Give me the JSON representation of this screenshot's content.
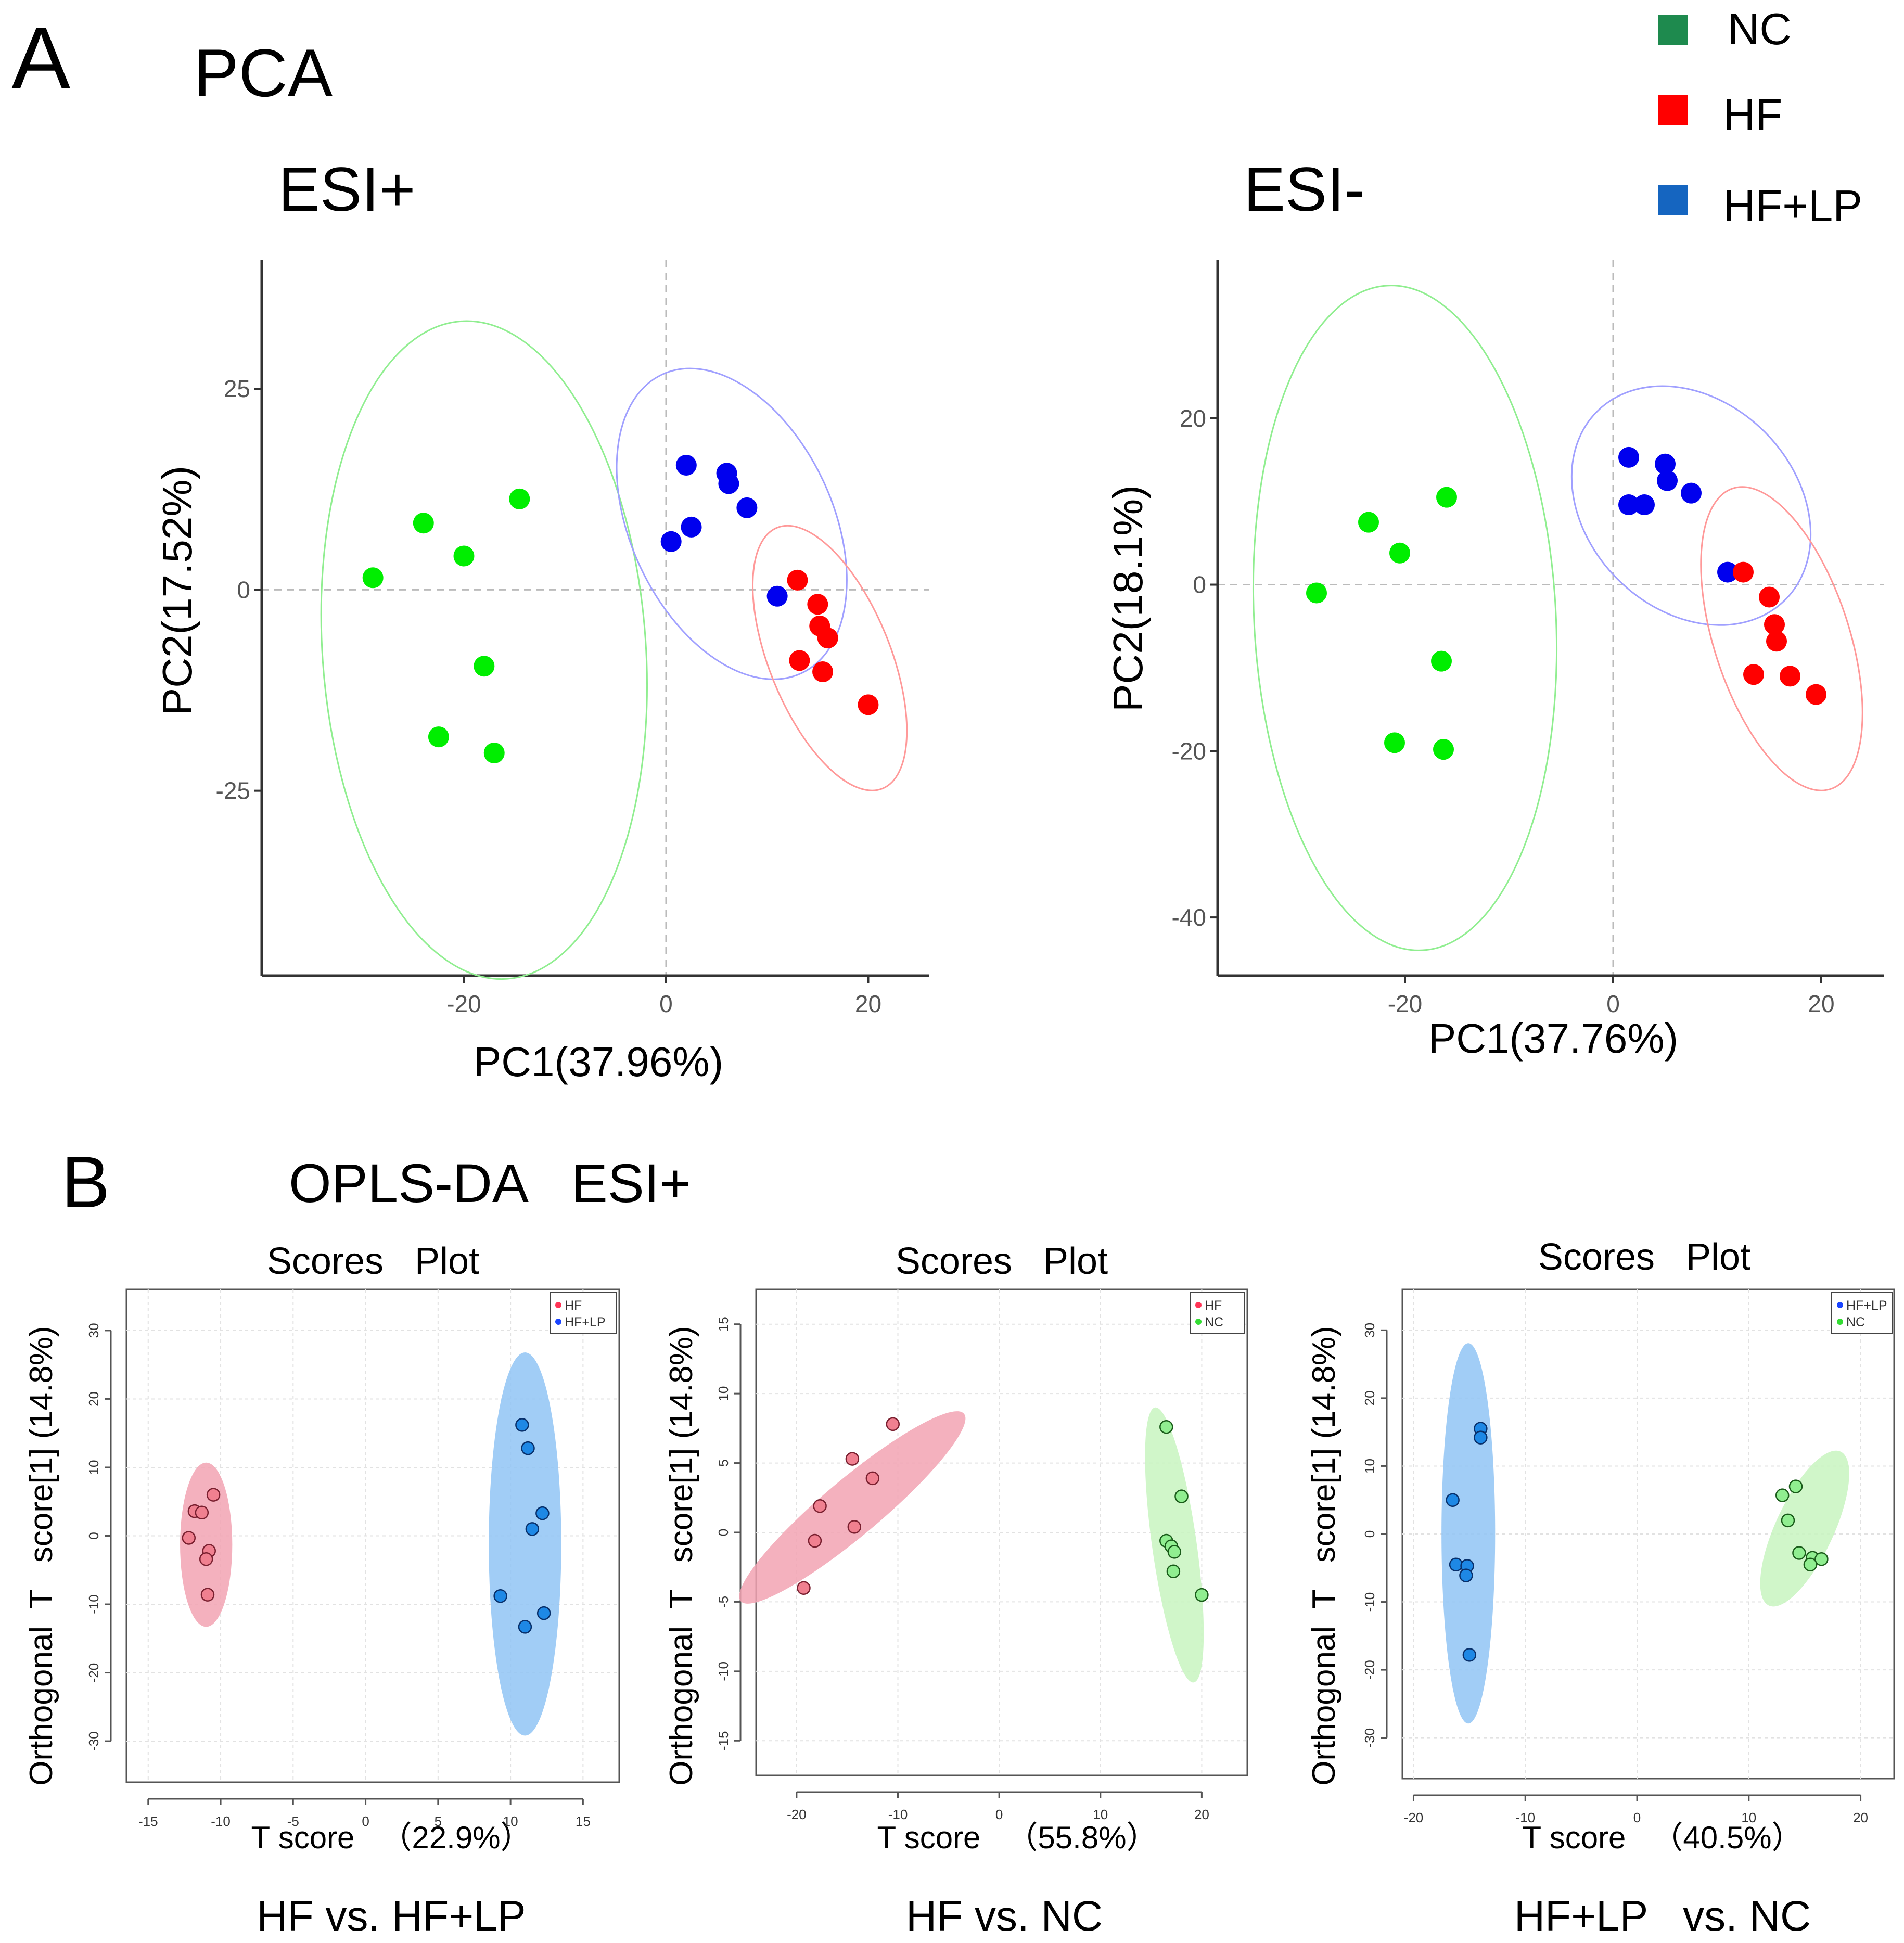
{
  "figure": {
    "panel_a": {
      "letter": "A",
      "title": "PCA"
    },
    "panel_b": {
      "letter": "B",
      "title": "OPLS-DA   ESI+"
    },
    "legend": {
      "items": [
        {
          "label": "NC",
          "color": "#1e8a4e"
        },
        {
          "label": "HF",
          "color": "#ff0000"
        },
        {
          "label": "HF+LP",
          "color": "#1565c0"
        }
      ]
    }
  },
  "chart_data": [
    {
      "id": "pca_esi_pos",
      "type": "scatter",
      "title": "ESI+",
      "xlabel": "PC1(37.96%)",
      "ylabel": "PC2(17.52%)",
      "xlim": [
        -40,
        26
      ],
      "ylim": [
        -48,
        41
      ],
      "xticks": [
        -20,
        0,
        20
      ],
      "yticks": [
        -25,
        0,
        25
      ],
      "series": [
        {
          "name": "NC",
          "color": "#00ee00",
          "points": [
            [
              -29,
              1.5
            ],
            [
              -24,
              8.3
            ],
            [
              -20,
              4.2
            ],
            [
              -14.5,
              11.3
            ],
            [
              -18,
              -9.5
            ],
            [
              -22.5,
              -18.3
            ],
            [
              -17,
              -20.3
            ]
          ],
          "ellipse": {
            "cx": -18,
            "cy": -7.5,
            "rx": 16,
            "ry": 41,
            "angle": -4
          }
        },
        {
          "name": "HF+LP",
          "color": "#0000ee",
          "points": [
            [
              0.5,
              6
            ],
            [
              2,
              15.5
            ],
            [
              2.5,
              7.8
            ],
            [
              6,
              14.5
            ],
            [
              6.2,
              13.2
            ],
            [
              8,
              10.2
            ],
            [
              11,
              -0.8
            ]
          ],
          "ellipse": {
            "cx": 6.5,
            "cy": 8.2,
            "rx": 10,
            "ry": 20.5,
            "angle": -25
          }
        },
        {
          "name": "HF",
          "color": "#ff0000",
          "points": [
            [
              13,
              1.2
            ],
            [
              15,
              -1.8
            ],
            [
              15.2,
              -4.5
            ],
            [
              16,
              -6
            ],
            [
              13.2,
              -8.8
            ],
            [
              15.5,
              -10.2
            ],
            [
              20,
              -14.3
            ]
          ],
          "ellipse": {
            "cx": 16.2,
            "cy": -8.5,
            "rx": 6,
            "ry": 17.5,
            "angle": -22
          }
        }
      ]
    },
    {
      "id": "pca_esi_neg",
      "type": "scatter",
      "title": "ESI-",
      "xlabel": "PC1(37.76%)",
      "ylabel": "PC2(18.1%)",
      "xlim": [
        -38,
        26
      ],
      "ylim": [
        -47,
        39
      ],
      "xticks": [
        -20,
        0,
        20
      ],
      "yticks": [
        -40,
        -20,
        0,
        20
      ],
      "series": [
        {
          "name": "NC",
          "color": "#00ee00",
          "points": [
            [
              -28.5,
              -1
            ],
            [
              -23.5,
              7.5
            ],
            [
              -20.5,
              3.8
            ],
            [
              -16,
              10.5
            ],
            [
              -16.5,
              -9.2
            ],
            [
              -21,
              -19
            ],
            [
              -16.3,
              -19.8
            ]
          ],
          "ellipse": {
            "cx": -20,
            "cy": -4,
            "rx": 14.5,
            "ry": 40,
            "angle": -3
          }
        },
        {
          "name": "HF+LP",
          "color": "#0000ee",
          "points": [
            [
              1.5,
              15.3
            ],
            [
              5,
              14.5
            ],
            [
              5.2,
              12.5
            ],
            [
              1.5,
              9.6
            ],
            [
              3,
              9.6
            ],
            [
              7.5,
              11
            ],
            [
              11,
              1.5
            ]
          ],
          "ellipse": {
            "cx": 7.5,
            "cy": 9.5,
            "rx": 10,
            "ry": 16,
            "angle": -45
          }
        },
        {
          "name": "HF",
          "color": "#ff0000",
          "points": [
            [
              12.5,
              1.5
            ],
            [
              15,
              -1.5
            ],
            [
              15.5,
              -4.8
            ],
            [
              15.7,
              -6.8
            ],
            [
              13.5,
              -10.8
            ],
            [
              17,
              -11
            ],
            [
              19.5,
              -13.2
            ]
          ],
          "ellipse": {
            "cx": 16.2,
            "cy": -6.5,
            "rx": 6.5,
            "ry": 19,
            "angle": -18
          }
        }
      ]
    },
    {
      "id": "oplsda_hf_hflp",
      "type": "scatter",
      "title": "Scores   Plot",
      "xlabel": "T score   （22.9%）",
      "ylabel": "Orthogonal  T   score[1] (14.8%)",
      "caption": "HF vs. HF+LP",
      "xlim": [
        -16.5,
        17.5
      ],
      "ylim": [
        -36,
        36
      ],
      "xticks": [
        -15,
        -10,
        -5,
        0,
        5,
        10,
        15
      ],
      "yticks": [
        -30,
        -20,
        -10,
        0,
        10,
        20,
        30
      ],
      "legend": [
        "HF",
        "HF+LP"
      ],
      "series": [
        {
          "name": "HF",
          "color": "#f08090",
          "edge": "#7a2030",
          "legend_color": "#ff3355",
          "points": [
            [
              -10.5,
              6
            ],
            [
              -11.8,
              3.6
            ],
            [
              -12.2,
              -0.3
            ],
            [
              -11.3,
              3.4
            ],
            [
              -10.8,
              -2.2
            ],
            [
              -11,
              -3.4
            ],
            [
              -10.9,
              -8.6
            ]
          ],
          "ellipse": {
            "cx": -11,
            "cy": -1.3,
            "rx": 1.8,
            "ry": 12,
            "angle": 0
          }
        },
        {
          "name": "HF+LP",
          "color": "#1e88e5",
          "edge": "#08306b",
          "legend_color": "#1a44ff",
          "points": [
            [
              10.8,
              16.2
            ],
            [
              11.2,
              12.8
            ],
            [
              12.2,
              3.3
            ],
            [
              11.5,
              1
            ],
            [
              9.3,
              -8.8
            ],
            [
              12.3,
              -11.3
            ],
            [
              11,
              -13.3
            ]
          ],
          "ellipse": {
            "cx": 11,
            "cy": -1.2,
            "rx": 2.5,
            "ry": 28,
            "angle": 0
          }
        }
      ]
    },
    {
      "id": "oplsda_hf_nc",
      "type": "scatter",
      "title": "Scores   Plot",
      "xlabel": "T score   （55.8%）",
      "ylabel": "Orthogonal  T   score[1] (14.8%)",
      "caption": "HF vs. NC",
      "xlim": [
        -24,
        24.5
      ],
      "ylim": [
        -17.5,
        17.5
      ],
      "xticks": [
        -20,
        -10,
        0,
        10,
        20
      ],
      "yticks": [
        -15,
        -10,
        -5,
        0,
        5,
        10,
        15
      ],
      "legend": [
        "HF",
        "NC"
      ],
      "series": [
        {
          "name": "HF",
          "color": "#f08090",
          "edge": "#7a2030",
          "legend_color": "#ff3355",
          "points": [
            [
              -10.5,
              7.8
            ],
            [
              -14.5,
              5.3
            ],
            [
              -12.5,
              3.9
            ],
            [
              -17.7,
              1.9
            ],
            [
              -14.3,
              0.4
            ],
            [
              -18.2,
              -0.6
            ],
            [
              -19.3,
              -4
            ]
          ],
          "ellipse": {
            "cx": -14.5,
            "cy": 1.8,
            "rx": 2.8,
            "ry": 10.5,
            "angle": 50
          }
        },
        {
          "name": "NC",
          "color": "#90ee90",
          "edge": "#1a5c1a",
          "legend_color": "#33dd33",
          "points": [
            [
              16.5,
              7.6
            ],
            [
              18,
              2.6
            ],
            [
              16.5,
              -0.6
            ],
            [
              17,
              -1
            ],
            [
              17.3,
              -1.4
            ],
            [
              17.2,
              -2.8
            ],
            [
              20,
              -4.5
            ]
          ],
          "ellipse": {
            "cx": 17.3,
            "cy": -0.9,
            "rx": 2.2,
            "ry": 10,
            "angle": -8
          }
        }
      ]
    },
    {
      "id": "oplsda_hflp_nc",
      "type": "scatter",
      "title": "Scores   Plot",
      "xlabel": "T score   （40.5%）",
      "ylabel": "Orthogonal  T   score[1] (14.8%)",
      "caption": "HF+LP   vs. NC",
      "xlim": [
        -21,
        23
      ],
      "ylim": [
        -36,
        36
      ],
      "xticks": [
        -20,
        -10,
        0,
        10,
        20
      ],
      "yticks": [
        -30,
        -20,
        -10,
        0,
        10,
        20,
        30
      ],
      "legend": [
        "HF+LP",
        "NC"
      ],
      "series": [
        {
          "name": "HF+LP",
          "color": "#1e88e5",
          "edge": "#08306b",
          "legend_color": "#1a44ff",
          "points": [
            [
              -14,
              15.5
            ],
            [
              -14,
              14.2
            ],
            [
              -16.5,
              5
            ],
            [
              -16.2,
              -4.5
            ],
            [
              -15.2,
              -4.7
            ],
            [
              -15.3,
              -6.1
            ],
            [
              -15,
              -17.8
            ]
          ],
          "ellipse": {
            "cx": -15.1,
            "cy": 0.1,
            "rx": 2.4,
            "ry": 28,
            "angle": 0
          }
        },
        {
          "name": "NC",
          "color": "#90ee90",
          "edge": "#1a5c1a",
          "legend_color": "#33dd33",
          "points": [
            [
              13,
              5.7
            ],
            [
              14.2,
              7
            ],
            [
              13.5,
              2
            ],
            [
              14.5,
              -2.8
            ],
            [
              15.7,
              -3.5
            ],
            [
              16.5,
              -3.7
            ],
            [
              15.5,
              -4.5
            ]
          ],
          "ellipse": {
            "cx": 15,
            "cy": 0.8,
            "rx": 2.6,
            "ry": 12.5,
            "angle": 25
          }
        }
      ]
    }
  ]
}
